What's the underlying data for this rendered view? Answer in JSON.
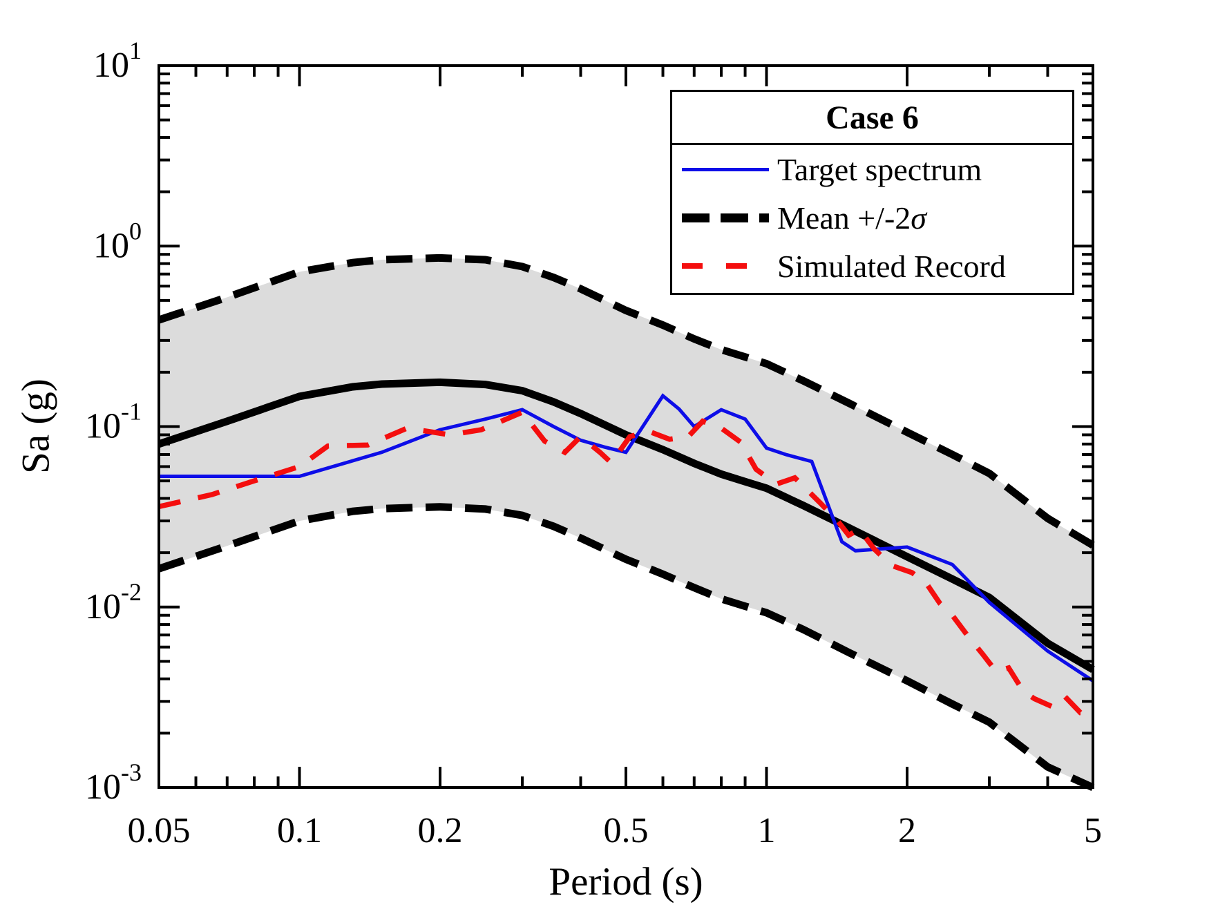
{
  "figure": {
    "background": "#ffffff"
  },
  "axes": {
    "xlabel": "Period (s)",
    "ylabel": "Sa (g)",
    "x_scale": "log",
    "y_scale": "log",
    "xlim": [
      0.05,
      5
    ],
    "ylim": [
      0.001,
      10
    ],
    "grid": false,
    "x_ticks": [
      {
        "v": 0.05,
        "label": "0.05"
      },
      {
        "v": 0.1,
        "label": "0.1"
      },
      {
        "v": 0.2,
        "label": "0.2"
      },
      {
        "v": 0.5,
        "label": "0.5"
      },
      {
        "v": 1,
        "label": "1"
      },
      {
        "v": 2,
        "label": "2"
      },
      {
        "v": 5,
        "label": "5"
      }
    ],
    "x_minor": [
      0.06,
      0.07,
      0.08,
      0.09,
      0.3,
      0.4,
      0.6,
      0.7,
      0.8,
      0.9,
      3,
      4
    ],
    "y_ticks": [
      {
        "v": 10,
        "base": "10",
        "exp": "1"
      },
      {
        "v": 1,
        "base": "10",
        "exp": "0"
      },
      {
        "v": 0.1,
        "base": "10",
        "exp": "-1"
      },
      {
        "v": 0.01,
        "base": "10",
        "exp": "-2"
      },
      {
        "v": 0.001,
        "base": "10",
        "exp": "-3"
      }
    ],
    "y_minor": [
      0.002,
      0.003,
      0.004,
      0.005,
      0.006,
      0.007,
      0.008,
      0.009,
      0.02,
      0.03,
      0.04,
      0.05,
      0.06,
      0.07,
      0.08,
      0.09,
      0.2,
      0.3,
      0.4,
      0.5,
      0.6,
      0.7,
      0.8,
      0.9,
      2,
      3,
      4,
      5,
      6,
      7,
      8,
      9
    ]
  },
  "legend": {
    "title": "Case 6",
    "position": "top-right",
    "items": [
      {
        "label": "Target spectrum",
        "color": "#0d0de8",
        "style": "solid-thin"
      },
      {
        "label": "Mean +/-2σ",
        "label_prefix": "Mean +/-2",
        "label_sigma": "σ",
        "color": "#000000",
        "style": "dashed-thick"
      },
      {
        "label": "Simulated Record",
        "color": "#f40e0e",
        "style": "dashed"
      }
    ]
  },
  "chart_data": {
    "type": "line",
    "title": "Case 6",
    "xlabel": "Period (s)",
    "ylabel": "Sa (g)",
    "x_range": [
      0.05,
      5
    ],
    "y_range": [
      0.001,
      10
    ],
    "scale": "log-log",
    "band": {
      "fill": "#dcdcdc",
      "upper": "Mean +2σ",
      "lower": "Mean -2σ"
    },
    "series": [
      {
        "name": "Mean +2σ",
        "color": "#000000",
        "style": "dashed-thick",
        "x": [
          0.05,
          0.07,
          0.1,
          0.13,
          0.15,
          0.2,
          0.25,
          0.3,
          0.35,
          0.4,
          0.5,
          0.6,
          0.7,
          0.8,
          0.9,
          1.0,
          1.2,
          1.5,
          2.0,
          2.5,
          3.0,
          4.0,
          5.0
        ],
        "y": [
          0.39,
          0.52,
          0.72,
          0.81,
          0.84,
          0.86,
          0.84,
          0.77,
          0.67,
          0.58,
          0.44,
          0.365,
          0.306,
          0.267,
          0.243,
          0.223,
          0.179,
          0.135,
          0.093,
          0.07,
          0.055,
          0.031,
          0.022
        ]
      },
      {
        "name": "Mean -2σ",
        "color": "#000000",
        "style": "dashed-thick",
        "x": [
          0.05,
          0.07,
          0.1,
          0.13,
          0.15,
          0.2,
          0.25,
          0.3,
          0.35,
          0.4,
          0.5,
          0.6,
          0.7,
          0.8,
          0.9,
          1.0,
          1.2,
          1.5,
          2.0,
          2.5,
          3.0,
          4.0,
          5.0
        ],
        "y": [
          0.0163,
          0.0218,
          0.03,
          0.0339,
          0.0351,
          0.0359,
          0.0349,
          0.0322,
          0.028,
          0.0241,
          0.0184,
          0.0152,
          0.0128,
          0.0111,
          0.0101,
          0.0093,
          0.0075,
          0.0056,
          0.0039,
          0.0029,
          0.0023,
          0.0013,
          0.001
        ]
      },
      {
        "name": "Mean",
        "color": "#000000",
        "style": "solid-thick",
        "x": [
          0.05,
          0.07,
          0.1,
          0.13,
          0.15,
          0.2,
          0.25,
          0.3,
          0.35,
          0.4,
          0.5,
          0.6,
          0.7,
          0.8,
          0.9,
          1.0,
          1.2,
          1.5,
          2.0,
          2.5,
          3.0,
          4.0,
          5.0
        ],
        "y": [
          0.08,
          0.107,
          0.147,
          0.166,
          0.172,
          0.176,
          0.171,
          0.158,
          0.137,
          0.118,
          0.09,
          0.0745,
          0.0625,
          0.0545,
          0.0495,
          0.0455,
          0.0365,
          0.0275,
          0.019,
          0.0143,
          0.0113,
          0.0063,
          0.0045
        ]
      },
      {
        "name": "Target spectrum",
        "color": "#0d0de8",
        "style": "solid-thin",
        "x": [
          0.05,
          0.1,
          0.15,
          0.2,
          0.25,
          0.3,
          0.35,
          0.4,
          0.45,
          0.5,
          0.6,
          0.65,
          0.7,
          0.8,
          0.9,
          1.0,
          1.1,
          1.25,
          1.45,
          1.55,
          2.0,
          2.5,
          3.0,
          4.0,
          5.0
        ],
        "y": [
          0.053,
          0.053,
          0.072,
          0.096,
          0.11,
          0.124,
          0.1,
          0.084,
          0.077,
          0.072,
          0.148,
          0.125,
          0.1,
          0.124,
          0.11,
          0.076,
          0.07,
          0.064,
          0.023,
          0.0205,
          0.0215,
          0.0172,
          0.0106,
          0.0057,
          0.0039
        ]
      },
      {
        "name": "Simulated Record",
        "color": "#f40e0e",
        "style": "dashed",
        "x": [
          0.05,
          0.065,
          0.08,
          0.1,
          0.115,
          0.14,
          0.17,
          0.21,
          0.245,
          0.3,
          0.335,
          0.37,
          0.4,
          0.44,
          0.465,
          0.51,
          0.56,
          0.62,
          0.68,
          0.73,
          0.8,
          0.88,
          0.95,
          1.05,
          1.15,
          1.3,
          1.42,
          1.5,
          1.58,
          1.7,
          1.85,
          2.05,
          2.2,
          2.35,
          2.5,
          2.7,
          2.9,
          3.1,
          3.3,
          3.55,
          3.75,
          4.1,
          4.35,
          4.7,
          5.0
        ],
        "y": [
          0.036,
          0.042,
          0.05,
          0.06,
          0.078,
          0.079,
          0.098,
          0.09,
          0.096,
          0.12,
          0.083,
          0.072,
          0.088,
          0.072,
          0.063,
          0.088,
          0.094,
          0.085,
          0.088,
          0.107,
          0.098,
          0.082,
          0.058,
          0.048,
          0.052,
          0.038,
          0.03,
          0.025,
          0.027,
          0.021,
          0.017,
          0.0155,
          0.0135,
          0.0105,
          0.009,
          0.0069,
          0.0055,
          0.0044,
          0.0046,
          0.0034,
          0.0031,
          0.0028,
          0.0032,
          0.0026,
          0.0026
        ]
      }
    ]
  }
}
